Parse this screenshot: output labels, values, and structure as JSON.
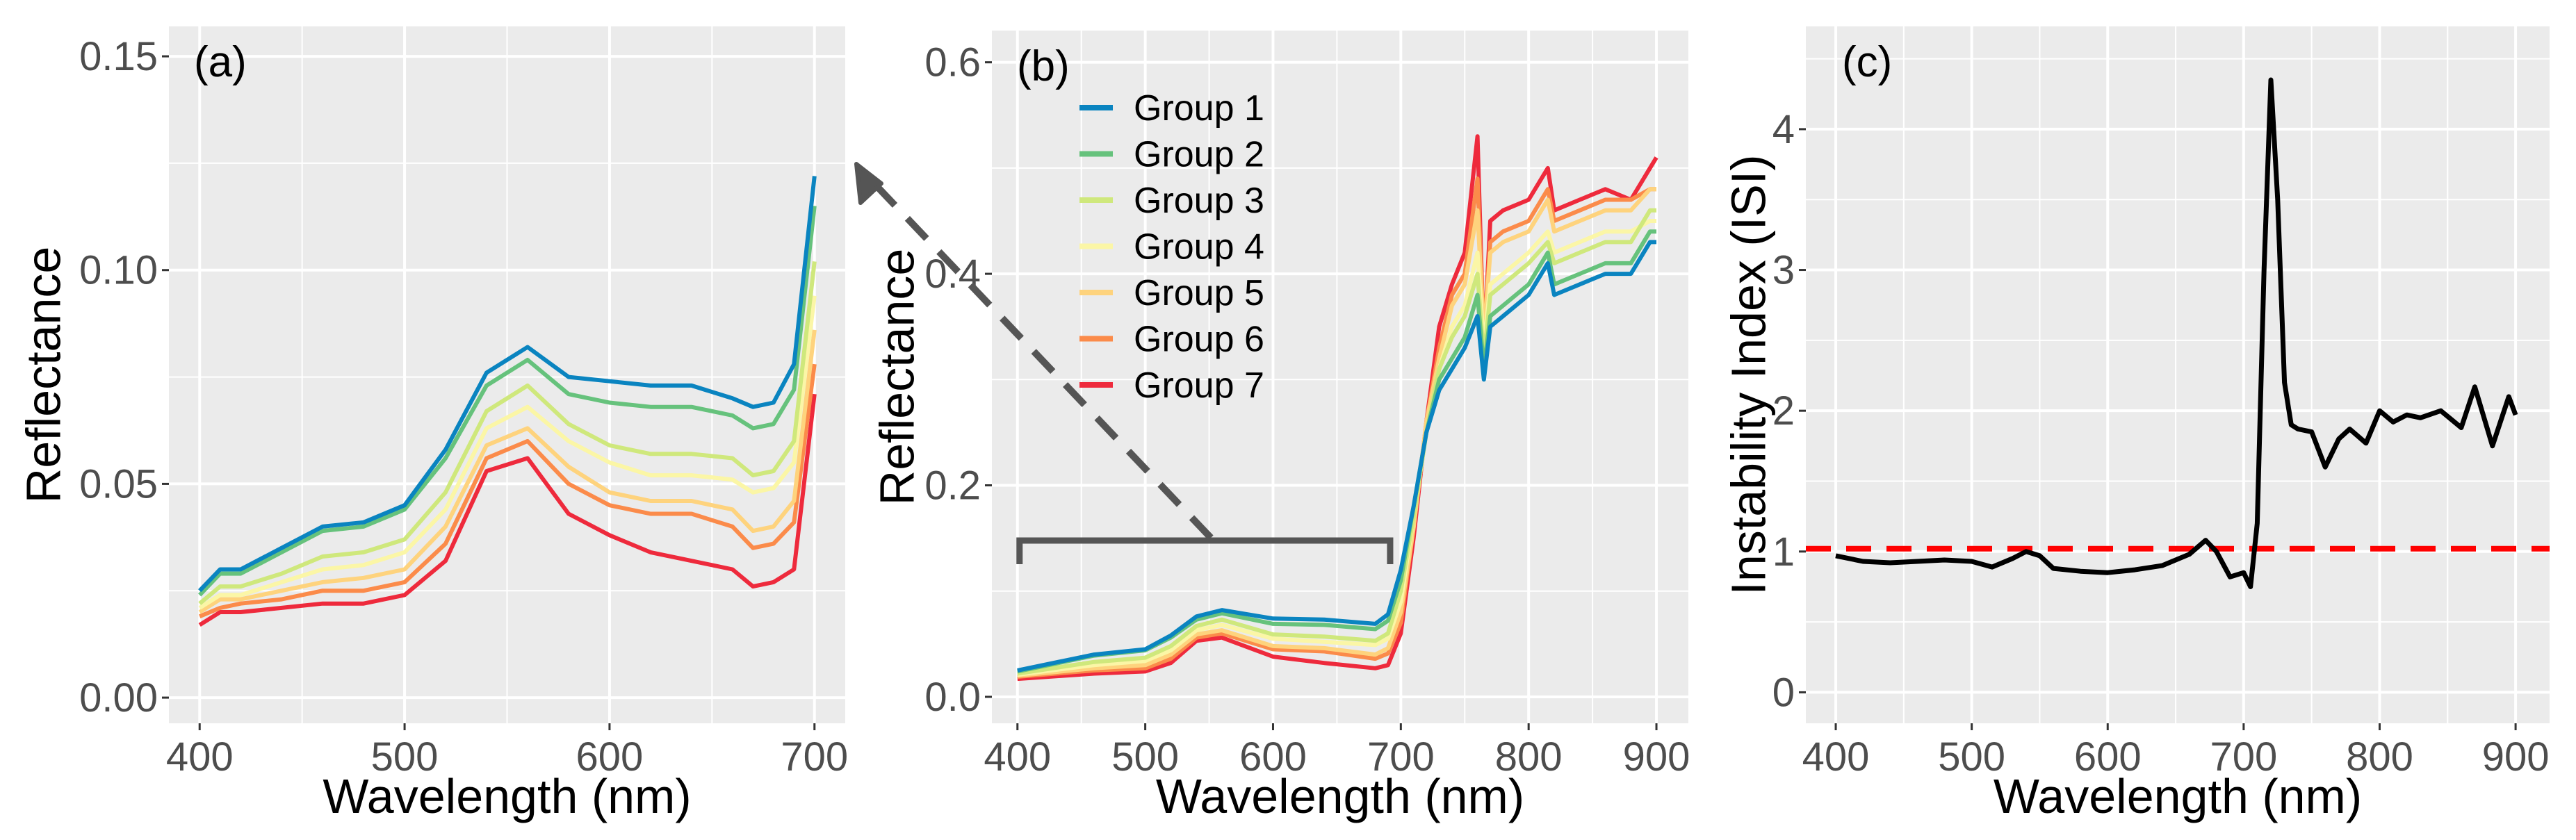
{
  "chart_data": [
    {
      "type": "line",
      "panel_label": "(a)",
      "xlabel": "Wavelength (nm)",
      "ylabel": "Reflectance",
      "xlim": [
        385,
        715
      ],
      "ylim": [
        -0.006,
        0.157
      ],
      "xticks": [
        400,
        500,
        600,
        700
      ],
      "yticks": [
        0.0,
        0.05,
        0.1,
        0.15
      ],
      "ytick_labels": [
        "0.00",
        "0.05",
        "0.10",
        "0.15"
      ],
      "xminor": [
        450,
        550,
        650
      ],
      "yminor": [
        0.025,
        0.075,
        0.125
      ],
      "x": [
        400,
        410,
        420,
        440,
        460,
        480,
        500,
        520,
        540,
        560,
        580,
        600,
        620,
        640,
        660,
        670,
        680,
        690,
        700
      ],
      "series": [
        {
          "name": "Group 1",
          "color": "#0a84c0",
          "values": [
            0.025,
            0.03,
            0.03,
            0.035,
            0.04,
            0.041,
            0.045,
            0.058,
            0.076,
            0.082,
            0.075,
            0.074,
            0.073,
            0.073,
            0.07,
            0.068,
            0.069,
            0.078,
            0.122
          ]
        },
        {
          "name": "Group 2",
          "color": "#66c27c",
          "values": [
            0.024,
            0.029,
            0.029,
            0.034,
            0.039,
            0.04,
            0.044,
            0.056,
            0.073,
            0.079,
            0.071,
            0.069,
            0.068,
            0.068,
            0.066,
            0.063,
            0.064,
            0.072,
            0.115
          ]
        },
        {
          "name": "Group 3",
          "color": "#cfe87c",
          "values": [
            0.022,
            0.026,
            0.026,
            0.029,
            0.033,
            0.034,
            0.037,
            0.048,
            0.067,
            0.073,
            0.064,
            0.059,
            0.057,
            0.057,
            0.056,
            0.052,
            0.053,
            0.06,
            0.102
          ]
        },
        {
          "name": "Group 4",
          "color": "#fbf6a6",
          "values": [
            0.021,
            0.024,
            0.024,
            0.027,
            0.03,
            0.031,
            0.034,
            0.044,
            0.063,
            0.068,
            0.06,
            0.055,
            0.052,
            0.052,
            0.051,
            0.048,
            0.049,
            0.055,
            0.094
          ]
        },
        {
          "name": "Group 5",
          "color": "#fed37d",
          "values": [
            0.02,
            0.023,
            0.023,
            0.025,
            0.027,
            0.028,
            0.03,
            0.04,
            0.059,
            0.063,
            0.054,
            0.048,
            0.046,
            0.046,
            0.044,
            0.039,
            0.04,
            0.046,
            0.086
          ]
        },
        {
          "name": "Group 6",
          "color": "#fb8b4a",
          "values": [
            0.019,
            0.021,
            0.022,
            0.023,
            0.025,
            0.025,
            0.027,
            0.036,
            0.056,
            0.06,
            0.05,
            0.045,
            0.043,
            0.043,
            0.04,
            0.035,
            0.036,
            0.041,
            0.078
          ]
        },
        {
          "name": "Group 7",
          "color": "#ee2a3c",
          "values": [
            0.017,
            0.02,
            0.02,
            0.021,
            0.022,
            0.022,
            0.024,
            0.032,
            0.053,
            0.056,
            0.043,
            0.038,
            0.034,
            0.032,
            0.03,
            0.026,
            0.027,
            0.03,
            0.071
          ]
        }
      ]
    },
    {
      "type": "line",
      "panel_label": "(b)",
      "xlabel": "Wavelength (nm)",
      "ylabel": "Reflectance",
      "xlim": [
        380,
        925
      ],
      "ylim": [
        -0.025,
        0.63
      ],
      "xticks": [
        400,
        500,
        600,
        700,
        800,
        900
      ],
      "yticks": [
        0.0,
        0.2,
        0.4,
        0.6
      ],
      "ytick_labels": [
        "0.0",
        "0.2",
        "0.4",
        "0.6"
      ],
      "xminor": [
        450,
        550,
        650,
        750,
        850
      ],
      "yminor": [
        0.1,
        0.3,
        0.5
      ],
      "legend_position": "top-left",
      "bracket_range": [
        400,
        690
      ],
      "x": [
        400,
        460,
        500,
        520,
        540,
        560,
        600,
        640,
        680,
        690,
        700,
        710,
        720,
        730,
        740,
        750,
        760,
        765,
        770,
        780,
        800,
        815,
        820,
        840,
        860,
        880,
        895,
        900
      ],
      "series": [
        {
          "name": "Group 1",
          "color": "#0a84c0",
          "values": [
            0.025,
            0.04,
            0.045,
            0.058,
            0.076,
            0.082,
            0.074,
            0.073,
            0.069,
            0.078,
            0.12,
            0.18,
            0.25,
            0.29,
            0.31,
            0.33,
            0.36,
            0.3,
            0.35,
            0.36,
            0.38,
            0.41,
            0.38,
            0.39,
            0.4,
            0.4,
            0.43,
            0.43
          ]
        },
        {
          "name": "Group 2",
          "color": "#66c27c",
          "values": [
            0.024,
            0.039,
            0.044,
            0.056,
            0.073,
            0.079,
            0.069,
            0.068,
            0.064,
            0.072,
            0.11,
            0.18,
            0.25,
            0.3,
            0.32,
            0.34,
            0.38,
            0.31,
            0.36,
            0.37,
            0.39,
            0.42,
            0.39,
            0.4,
            0.41,
            0.41,
            0.44,
            0.44
          ]
        },
        {
          "name": "Group 3",
          "color": "#cfe87c",
          "values": [
            0.022,
            0.033,
            0.037,
            0.048,
            0.067,
            0.073,
            0.059,
            0.057,
            0.053,
            0.06,
            0.1,
            0.17,
            0.25,
            0.31,
            0.34,
            0.36,
            0.4,
            0.32,
            0.38,
            0.39,
            0.41,
            0.43,
            0.41,
            0.42,
            0.43,
            0.43,
            0.46,
            0.46
          ]
        },
        {
          "name": "Group 4",
          "color": "#fbf6a6",
          "values": [
            0.021,
            0.03,
            0.034,
            0.044,
            0.063,
            0.068,
            0.055,
            0.052,
            0.049,
            0.055,
            0.09,
            0.17,
            0.25,
            0.31,
            0.35,
            0.37,
            0.42,
            0.33,
            0.39,
            0.4,
            0.42,
            0.44,
            0.42,
            0.43,
            0.44,
            0.44,
            0.45,
            0.45
          ]
        },
        {
          "name": "Group 5",
          "color": "#fed37d",
          "values": [
            0.02,
            0.027,
            0.03,
            0.04,
            0.059,
            0.063,
            0.048,
            0.046,
            0.04,
            0.046,
            0.08,
            0.16,
            0.26,
            0.32,
            0.37,
            0.39,
            0.46,
            0.34,
            0.42,
            0.43,
            0.44,
            0.47,
            0.44,
            0.45,
            0.46,
            0.46,
            0.48,
            0.48
          ]
        },
        {
          "name": "Group 6",
          "color": "#fb8b4a",
          "values": [
            0.019,
            0.025,
            0.027,
            0.036,
            0.056,
            0.06,
            0.045,
            0.043,
            0.036,
            0.041,
            0.07,
            0.16,
            0.26,
            0.33,
            0.38,
            0.4,
            0.49,
            0.34,
            0.43,
            0.44,
            0.45,
            0.48,
            0.45,
            0.46,
            0.47,
            0.47,
            0.48,
            0.48
          ]
        },
        {
          "name": "Group 7",
          "color": "#ee2a3c",
          "values": [
            0.017,
            0.022,
            0.024,
            0.032,
            0.053,
            0.056,
            0.038,
            0.032,
            0.027,
            0.03,
            0.06,
            0.15,
            0.26,
            0.35,
            0.39,
            0.42,
            0.53,
            0.33,
            0.45,
            0.46,
            0.47,
            0.5,
            0.46,
            0.47,
            0.48,
            0.47,
            0.5,
            0.51
          ]
        }
      ]
    },
    {
      "type": "line",
      "panel_label": "(c)",
      "xlabel": "Wavelength (nm)",
      "ylabel": "Instability Index (ISI)",
      "xlim": [
        378,
        925
      ],
      "ylim": [
        -0.22,
        4.73
      ],
      "xticks": [
        400,
        500,
        600,
        700,
        800,
        900
      ],
      "yticks": [
        0,
        1,
        2,
        3,
        4
      ],
      "ytick_labels": [
        "0",
        "1",
        "2",
        "3",
        "4"
      ],
      "xminor": [
        450,
        550,
        650,
        750,
        850
      ],
      "yminor": [
        0.5,
        1.5,
        2.5,
        3.5,
        4.5
      ],
      "threshold": {
        "value": 1.02,
        "color": "#ff0000"
      },
      "x": [
        400,
        420,
        440,
        460,
        480,
        500,
        515,
        530,
        540,
        550,
        560,
        580,
        600,
        620,
        640,
        660,
        672,
        680,
        690,
        700,
        705,
        710,
        715,
        720,
        725,
        730,
        735,
        740,
        750,
        760,
        770,
        778,
        790,
        800,
        810,
        820,
        830,
        845,
        860,
        870,
        883,
        895,
        900
      ],
      "series": [
        {
          "name": "ISI",
          "color": "#000000",
          "values": [
            0.97,
            0.93,
            0.92,
            0.93,
            0.94,
            0.93,
            0.89,
            0.95,
            1.0,
            0.97,
            0.88,
            0.86,
            0.85,
            0.87,
            0.9,
            0.98,
            1.08,
            1.0,
            0.82,
            0.85,
            0.75,
            1.2,
            3.0,
            4.35,
            3.5,
            2.2,
            1.9,
            1.87,
            1.85,
            1.6,
            1.8,
            1.87,
            1.77,
            2.0,
            1.92,
            1.97,
            1.95,
            2.0,
            1.88,
            2.17,
            1.75,
            2.1,
            1.97
          ]
        }
      ]
    }
  ]
}
